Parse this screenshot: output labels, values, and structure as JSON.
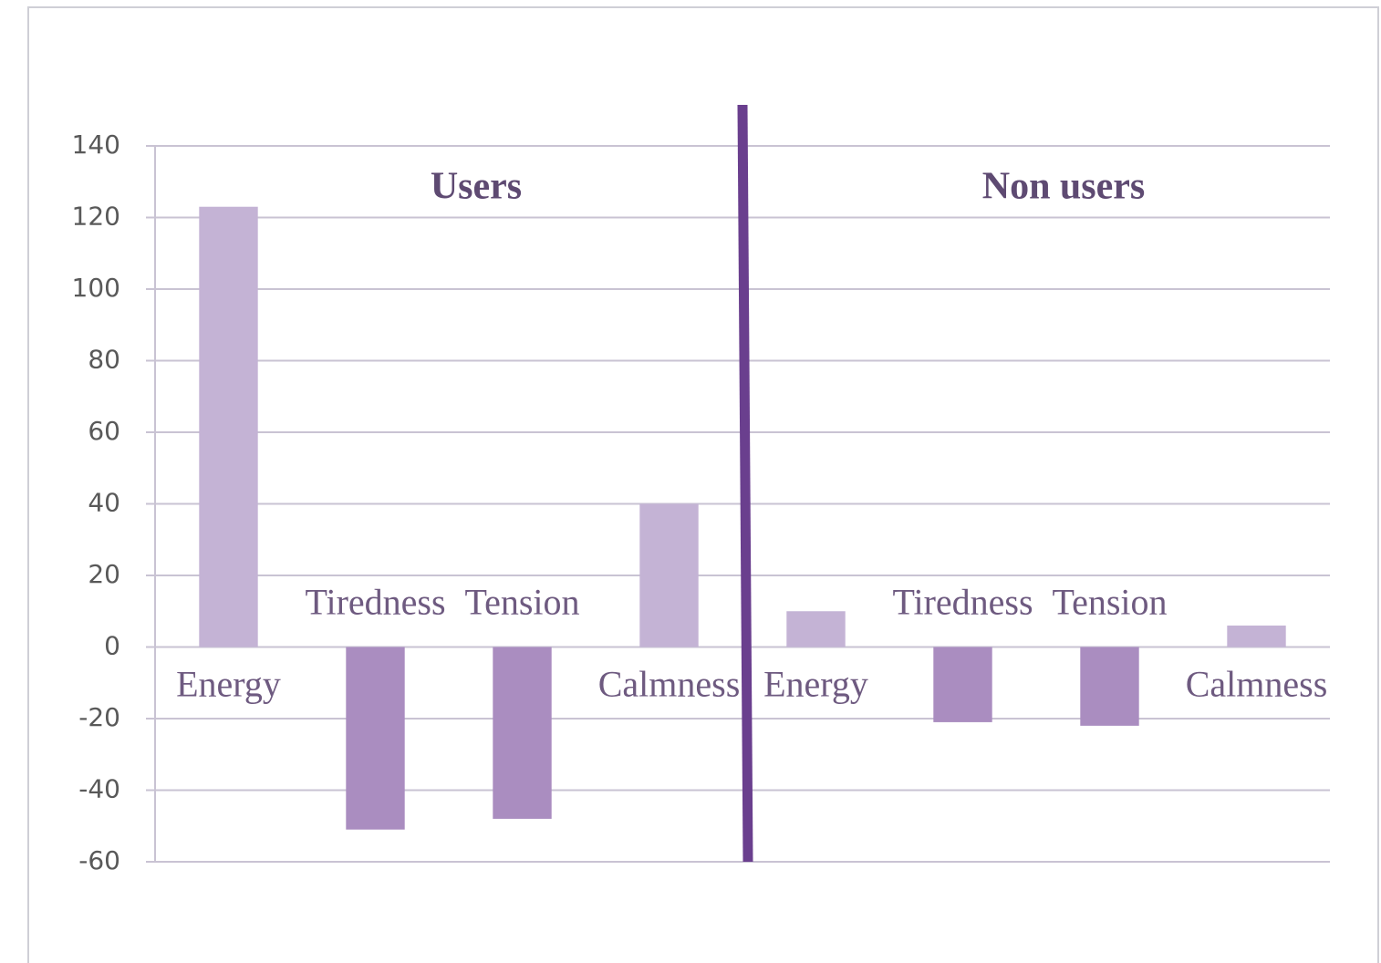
{
  "chart_data": {
    "type": "bar",
    "categories": [
      "Energy",
      "Tiredness",
      "Tension",
      "Calmness",
      "Energy",
      "Tiredness",
      "Tension",
      "Calmness"
    ],
    "values": [
      123,
      -51,
      -48,
      40,
      10,
      -21,
      -22,
      6
    ],
    "colors": [
      "#c4b3d5",
      "#aa8dc0",
      "#aa8dc0",
      "#c4b3d5",
      "#c4b3d5",
      "#aa8dc0",
      "#aa8dc0",
      "#c4b3d5"
    ],
    "groups": [
      "Users",
      "Non users"
    ],
    "ylim": [
      -60,
      140
    ],
    "yticks": [
      -60,
      -40,
      -20,
      0,
      20,
      40,
      60,
      80,
      100,
      120,
      140
    ],
    "grid": true
  }
}
